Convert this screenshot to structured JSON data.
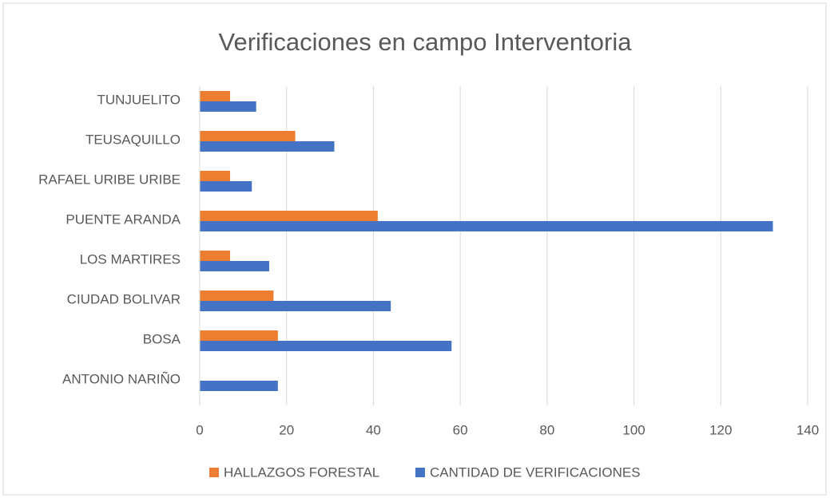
{
  "chart_data": {
    "type": "hbar",
    "title": "Verificaciones en campo Interventoria",
    "categories": [
      "ANTONIO NARIÑO",
      "BOSA",
      "CIUDAD BOLIVAR",
      "LOS MARTIRES",
      "PUENTE ARANDA",
      "RAFAEL URIBE URIBE",
      "TEUSAQUILLO",
      "TUNJUELITO"
    ],
    "series": [
      {
        "name": "HALLAZGOS FORESTAL",
        "color": "#ed7d31",
        "values": [
          0,
          18,
          17,
          7,
          41,
          7,
          22,
          7
        ]
      },
      {
        "name": "CANTIDAD DE VERIFICACIONES",
        "color": "#4472c4",
        "values": [
          18,
          58,
          44,
          16,
          132,
          12,
          31,
          13
        ]
      }
    ],
    "xlim": [
      0,
      140
    ],
    "xticks": [
      0,
      20,
      40,
      60,
      80,
      100,
      120,
      140
    ],
    "grid": true,
    "legend": "bottom"
  }
}
